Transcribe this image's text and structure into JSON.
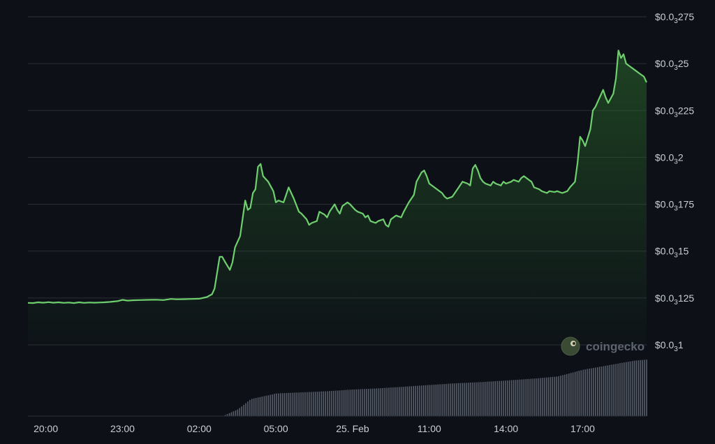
{
  "colors": {
    "background": "#0d1117",
    "line": "#6fcf6f",
    "area_top": "#2c6a2c",
    "volume": "#6b7280",
    "grid": "#2a2f37",
    "text": "#c9ced6"
  },
  "watermark": {
    "text": "coingecko",
    "icon": "coingecko-logo-icon"
  },
  "chart_data": {
    "type": "area",
    "y_axis": {
      "position": "right",
      "ylim": [
        0.0001,
        0.000275
      ],
      "ticks": [
        {
          "value": 0.000275,
          "prefix": "$0.0",
          "sub": "3",
          "suffix": "275"
        },
        {
          "value": 0.00025,
          "prefix": "$0.0",
          "sub": "3",
          "suffix": "25"
        },
        {
          "value": 0.000225,
          "prefix": "$0.0",
          "sub": "3",
          "suffix": "225"
        },
        {
          "value": 0.0002,
          "prefix": "$0.0",
          "sub": "3",
          "suffix": "2"
        },
        {
          "value": 0.000175,
          "prefix": "$0.0",
          "sub": "3",
          "suffix": "175"
        },
        {
          "value": 0.00015,
          "prefix": "$0.0",
          "sub": "3",
          "suffix": "15"
        },
        {
          "value": 0.000125,
          "prefix": "$0.0",
          "sub": "3",
          "suffix": "125"
        },
        {
          "value": 0.0001,
          "prefix": "$0.0",
          "sub": "3",
          "suffix": "1"
        }
      ]
    },
    "x_axis": {
      "range_hours": [
        19.3,
        43.5
      ],
      "ticks": [
        {
          "hour": 20,
          "label": "20:00"
        },
        {
          "hour": 23,
          "label": "23:00"
        },
        {
          "hour": 26,
          "label": "02:00"
        },
        {
          "hour": 29,
          "label": "05:00"
        },
        {
          "hour": 32,
          "label": "25. Feb"
        },
        {
          "hour": 35,
          "label": "11:00"
        },
        {
          "hour": 38,
          "label": "14:00"
        },
        {
          "hour": 41,
          "label": "17:00"
        }
      ]
    },
    "grid": true,
    "legend": "none",
    "series": [
      {
        "kind": "price",
        "points": [
          [
            19.3,
            0.0001224
          ],
          [
            19.5,
            0.0001223
          ],
          [
            19.7,
            0.0001227
          ],
          [
            19.9,
            0.0001225
          ],
          [
            20.1,
            0.0001228
          ],
          [
            20.3,
            0.0001225
          ],
          [
            20.5,
            0.0001227
          ],
          [
            20.7,
            0.0001224
          ],
          [
            20.9,
            0.0001226
          ],
          [
            21.1,
            0.0001223
          ],
          [
            21.3,
            0.0001227
          ],
          [
            21.5,
            0.0001224
          ],
          [
            21.7,
            0.0001226
          ],
          [
            21.9,
            0.0001225
          ],
          [
            22.1,
            0.0001226
          ],
          [
            22.3,
            0.0001227
          ],
          [
            22.5,
            0.0001229
          ],
          [
            22.8,
            0.0001233
          ],
          [
            23.0,
            0.000124
          ],
          [
            23.2,
            0.0001236
          ],
          [
            23.4,
            0.0001238
          ],
          [
            23.7,
            0.0001239
          ],
          [
            24.0,
            0.000124
          ],
          [
            24.3,
            0.0001241
          ],
          [
            24.6,
            0.0001239
          ],
          [
            24.9,
            0.0001245
          ],
          [
            25.1,
            0.0001243
          ],
          [
            25.4,
            0.0001244
          ],
          [
            25.7,
            0.0001245
          ],
          [
            26.0,
            0.0001246
          ],
          [
            26.3,
            0.0001255
          ],
          [
            26.5,
            0.000127
          ],
          [
            26.6,
            0.00013
          ],
          [
            26.8,
            0.000147
          ],
          [
            26.9,
            0.000147
          ],
          [
            27.0,
            0.0001445
          ],
          [
            27.2,
            0.00014
          ],
          [
            27.3,
            0.000144
          ],
          [
            27.4,
            0.000152
          ],
          [
            27.6,
            0.000158
          ],
          [
            27.8,
            0.000177
          ],
          [
            27.9,
            0.000172
          ],
          [
            28.0,
            0.000173
          ],
          [
            28.1,
            0.000181
          ],
          [
            28.2,
            0.000183
          ],
          [
            28.3,
            0.000195
          ],
          [
            28.4,
            0.0001965
          ],
          [
            28.5,
            0.00019
          ],
          [
            28.7,
            0.000187
          ],
          [
            28.9,
            0.000182
          ],
          [
            29.0,
            0.000176
          ],
          [
            29.1,
            0.000177
          ],
          [
            29.3,
            0.000176
          ],
          [
            29.4,
            0.00018
          ],
          [
            29.5,
            0.000184
          ],
          [
            29.7,
            0.000178
          ],
          [
            29.9,
            0.000171
          ],
          [
            30.0,
            0.00017
          ],
          [
            30.2,
            0.000167
          ],
          [
            30.3,
            0.000164
          ],
          [
            30.4,
            0.000165
          ],
          [
            30.6,
            0.000166
          ],
          [
            30.7,
            0.000171
          ],
          [
            30.9,
            0.0001695
          ],
          [
            31.0,
            0.000168
          ],
          [
            31.1,
            0.000171
          ],
          [
            31.3,
            0.000175
          ],
          [
            31.4,
            0.000172
          ],
          [
            31.5,
            0.00017
          ],
          [
            31.6,
            0.000174
          ],
          [
            31.8,
            0.000176
          ],
          [
            31.9,
            0.000175
          ],
          [
            32.1,
            0.000172
          ],
          [
            32.2,
            0.000171
          ],
          [
            32.4,
            0.00017
          ],
          [
            32.5,
            0.000168
          ],
          [
            32.6,
            0.000169
          ],
          [
            32.7,
            0.000166
          ],
          [
            32.9,
            0.000165
          ],
          [
            33.0,
            0.000166
          ],
          [
            33.2,
            0.000167
          ],
          [
            33.3,
            0.000164
          ],
          [
            33.4,
            0.000163
          ],
          [
            33.5,
            0.000167
          ],
          [
            33.7,
            0.000169
          ],
          [
            33.9,
            0.000168
          ],
          [
            34.0,
            0.000171
          ],
          [
            34.2,
            0.000176
          ],
          [
            34.4,
            0.00018
          ],
          [
            34.5,
            0.000187
          ],
          [
            34.7,
            0.000192
          ],
          [
            34.8,
            0.000193
          ],
          [
            34.9,
            0.00019
          ],
          [
            35.0,
            0.000186
          ],
          [
            35.2,
            0.000184
          ],
          [
            35.3,
            0.000183
          ],
          [
            35.5,
            0.000181
          ],
          [
            35.6,
            0.000179
          ],
          [
            35.7,
            0.000178
          ],
          [
            35.9,
            0.000179
          ],
          [
            36.1,
            0.000183
          ],
          [
            36.3,
            0.000187
          ],
          [
            36.5,
            0.000186
          ],
          [
            36.6,
            0.000185
          ],
          [
            36.7,
            0.000194
          ],
          [
            36.8,
            0.000196
          ],
          [
            36.9,
            0.000193
          ],
          [
            37.0,
            0.000189
          ],
          [
            37.1,
            0.000187
          ],
          [
            37.2,
            0.000186
          ],
          [
            37.4,
            0.000185
          ],
          [
            37.5,
            0.000187
          ],
          [
            37.6,
            0.000186
          ],
          [
            37.8,
            0.000185
          ],
          [
            37.9,
            0.000187
          ],
          [
            38.0,
            0.000186
          ],
          [
            38.2,
            0.000187
          ],
          [
            38.3,
            0.000188
          ],
          [
            38.5,
            0.000187
          ],
          [
            38.6,
            0.000189
          ],
          [
            38.7,
            0.00019
          ],
          [
            38.9,
            0.000188
          ],
          [
            39.0,
            0.000187
          ],
          [
            39.1,
            0.000184
          ],
          [
            39.3,
            0.000183
          ],
          [
            39.4,
            0.000182
          ],
          [
            39.6,
            0.000181
          ],
          [
            39.7,
            0.000182
          ],
          [
            39.9,
            0.0001815
          ],
          [
            40.0,
            0.000182
          ],
          [
            40.2,
            0.000181
          ],
          [
            40.4,
            0.000182
          ],
          [
            40.5,
            0.000184
          ],
          [
            40.7,
            0.000187
          ],
          [
            40.8,
            0.000197
          ],
          [
            40.9,
            0.000211
          ],
          [
            41.0,
            0.000209
          ],
          [
            41.1,
            0.000206
          ],
          [
            41.3,
            0.000215
          ],
          [
            41.4,
            0.000225
          ],
          [
            41.5,
            0.000227
          ],
          [
            41.6,
            0.00023
          ],
          [
            41.7,
            0.000233
          ],
          [
            41.8,
            0.000236
          ],
          [
            41.9,
            0.000232
          ],
          [
            42.0,
            0.000229
          ],
          [
            42.2,
            0.000234
          ],
          [
            42.3,
            0.000242
          ],
          [
            42.4,
            0.000257
          ],
          [
            42.5,
            0.000253
          ],
          [
            42.6,
            0.000255
          ],
          [
            42.7,
            0.00025
          ],
          [
            42.9,
            0.000248
          ],
          [
            43.0,
            0.000247
          ],
          [
            43.2,
            0.000245
          ],
          [
            43.4,
            0.000243
          ],
          [
            43.5,
            0.00024
          ]
        ]
      }
    ],
    "volume": {
      "note_units": "relative",
      "start_hour": 27.0,
      "values_by_hour": [
        [
          27.0,
          0.02
        ],
        [
          27.5,
          0.12
        ],
        [
          28.0,
          0.3
        ],
        [
          29.0,
          0.4
        ],
        [
          30.0,
          0.42
        ],
        [
          31.0,
          0.44
        ],
        [
          32.0,
          0.47
        ],
        [
          33.0,
          0.49
        ],
        [
          34.0,
          0.52
        ],
        [
          35.0,
          0.55
        ],
        [
          36.0,
          0.58
        ],
        [
          37.0,
          0.6
        ],
        [
          38.0,
          0.63
        ],
        [
          39.0,
          0.66
        ],
        [
          40.0,
          0.7
        ],
        [
          41.0,
          0.82
        ],
        [
          42.0,
          0.9
        ],
        [
          42.5,
          0.94
        ],
        [
          43.0,
          0.98
        ],
        [
          43.5,
          1.0
        ]
      ]
    }
  }
}
